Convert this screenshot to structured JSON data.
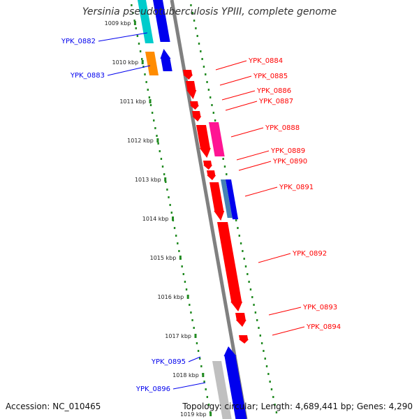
{
  "title": "Yersinia pseudotuberculosis YPIII, complete genome",
  "footer": {
    "accession": "Accession: NC_010465",
    "summary": "Topology: circular; Length: 4,689,441 bp; Genes: 4,290"
  },
  "colors": {
    "backbone": "#808080",
    "tick": "#228b22",
    "forward_label": "#0000cc",
    "reverse_label": "#dd0000"
  },
  "position_labels": [
    "1009 kbp",
    "1010 kbp",
    "1011 kbp",
    "1012 kbp",
    "1013 kbp",
    "1014 kbp",
    "1015 kbp",
    "1016 kbp",
    "1017 kbp",
    "1018 kbp",
    "1019 kbp"
  ],
  "genes_left": [
    {
      "label": "YPK_0882",
      "color": "#0000ee"
    },
    {
      "label": "YPK_0883",
      "color": "#0000ee"
    },
    {
      "label": "YPK_0895",
      "color": "#0000ee"
    },
    {
      "label": "YPK_0896",
      "color": "#0000ee"
    }
  ],
  "genes_right": [
    {
      "label": "YPK_0884",
      "color": "#ff0000"
    },
    {
      "label": "YPK_0885",
      "color": "#ff0000"
    },
    {
      "label": "YPK_0886",
      "color": "#ff0000"
    },
    {
      "label": "YPK_0887",
      "color": "#ff0000"
    },
    {
      "label": "YPK_0888",
      "color": "#ff0000"
    },
    {
      "label": "YPK_0889",
      "color": "#ff0000"
    },
    {
      "label": "YPK_0890",
      "color": "#ff0000"
    },
    {
      "label": "YPK_0891",
      "color": "#ff0000"
    },
    {
      "label": "YPK_0892",
      "color": "#ff0000"
    },
    {
      "label": "YPK_0893",
      "color": "#ff0000"
    },
    {
      "label": "YPK_0894",
      "color": "#ff0000"
    }
  ],
  "feature_colors": {
    "cyan": "#00cccc",
    "blue": "#0000ee",
    "orange": "#ff8c00",
    "red": "#ff0000",
    "pink": "#ff1493",
    "steel": "#4682b4",
    "grey": "#c0c0c0"
  }
}
